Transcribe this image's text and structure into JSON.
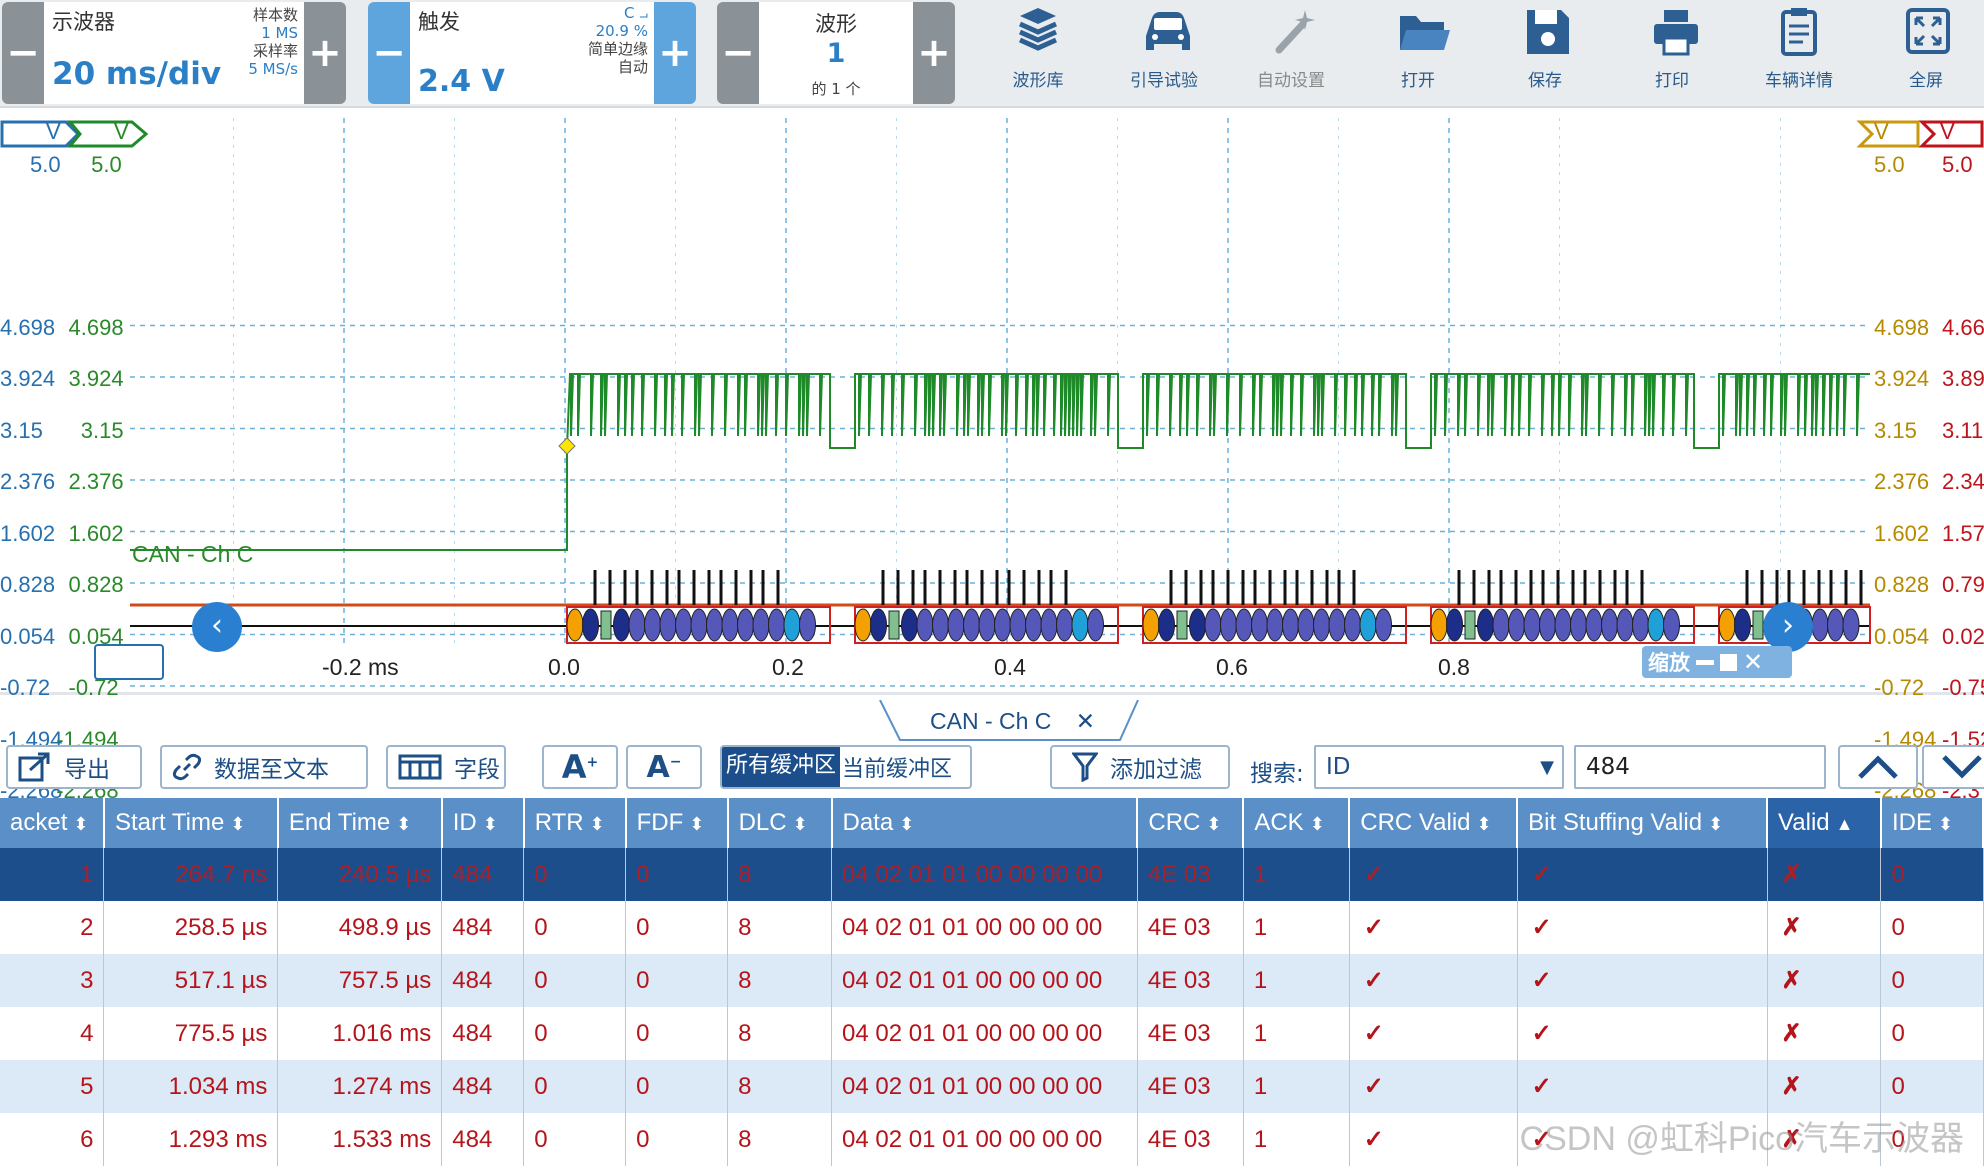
{
  "scope_ctl": {
    "title": "示波器",
    "timebase": "20 ms/div",
    "samples_label": "样本数",
    "samples_value": "1 MS",
    "rate_label": "采样率",
    "rate_value": "5 MS/s"
  },
  "trigger_ctl": {
    "title": "触发",
    "level": "2.4 V",
    "channel": "C",
    "percent": "20.9 %",
    "edge": "简单边缘",
    "mode": "自动"
  },
  "wave_ctl": {
    "title": "波形",
    "count": "1",
    "of": "的 1 个"
  },
  "tools": [
    {
      "label": "波形库",
      "icon": "waveform-library-icon"
    },
    {
      "label": "引导试验",
      "icon": "car-icon"
    },
    {
      "label": "自动设置",
      "icon": "auto-setup-icon"
    },
    {
      "label": "打开",
      "icon": "folder-icon"
    },
    {
      "label": "保存",
      "icon": "save-icon"
    },
    {
      "label": "打印",
      "icon": "printer-icon"
    },
    {
      "label": "车辆详情",
      "icon": "clipboard-icon"
    },
    {
      "label": "全屏",
      "icon": "fullscreen-icon"
    }
  ],
  "scope": {
    "left_axis_blue": {
      "unit": "V",
      "ticks": [
        "5.0",
        "4.698",
        "3.924",
        "3.15",
        "2.376",
        "1.602",
        "0.828",
        "0.054",
        "-0.72",
        "-1.494",
        "-2.268"
      ]
    },
    "left_axis_green": {
      "unit": "V",
      "ticks": [
        "5.0",
        "4.698",
        "3.924",
        "3.15",
        "2.376",
        "1.602",
        "0.828",
        "0.054",
        "-0.72",
        "-1.494",
        "-2.268"
      ]
    },
    "right_axis_orange": {
      "unit": "V",
      "ticks": [
        "5.0",
        "4.698",
        "3.924",
        "3.15",
        "2.376",
        "1.602",
        "0.828",
        "0.054",
        "-0.72",
        "-1.494",
        "-2.268"
      ]
    },
    "right_axis_red": {
      "unit": "V",
      "ticks": [
        "5.0",
        "4.66",
        "3.89",
        "3.11",
        "2.34",
        "1.57",
        "0.79",
        "0.02",
        "-0.75",
        "-1.52",
        "-2.3"
      ]
    },
    "x_ticks": [
      "-0.2 ms",
      "0.0",
      "0.2",
      "0.4",
      "0.6",
      "0.8"
    ],
    "channel_label": "CAN - Ch C",
    "zoom_label": "缩放",
    "colors": {
      "green": "#1f8a2a",
      "red": "#d0202a",
      "orange": "#e8a020",
      "blue": "#2770b0"
    }
  },
  "decoder": {
    "tab_label": "CAN - Ch C",
    "export": "导出",
    "to_text": "数据至文本",
    "fields": "字段",
    "buf_all": "所有缓冲区",
    "buf_current": "当前缓冲区",
    "add_filter": "添加过滤",
    "search_label": "搜索:",
    "search_field": "ID",
    "search_value": "484"
  },
  "table": {
    "columns": [
      "acket",
      "Start Time",
      "End Time",
      "ID",
      "RTR",
      "FDF",
      "DLC",
      "Data",
      "CRC",
      "ACK",
      "CRC Valid",
      "Bit Stuffing Valid",
      "Valid",
      "IDE"
    ],
    "rows": [
      [
        "1",
        "264.7 ns",
        "240.5 µs",
        "484",
        "0",
        "0",
        "8",
        "04 02 01 01 00 00 00 00",
        "4E 03",
        "1",
        "✓",
        "✓",
        "✗",
        "0"
      ],
      [
        "2",
        "258.5 µs",
        "498.9 µs",
        "484",
        "0",
        "0",
        "8",
        "04 02 01 01 00 00 00 00",
        "4E 03",
        "1",
        "✓",
        "✓",
        "✗",
        "0"
      ],
      [
        "3",
        "517.1 µs",
        "757.5 µs",
        "484",
        "0",
        "0",
        "8",
        "04 02 01 01 00 00 00 00",
        "4E 03",
        "1",
        "✓",
        "✓",
        "✗",
        "0"
      ],
      [
        "4",
        "775.5 µs",
        "1.016 ms",
        "484",
        "0",
        "0",
        "8",
        "04 02 01 01 00 00 00 00",
        "4E 03",
        "1",
        "✓",
        "✓",
        "✗",
        "0"
      ],
      [
        "5",
        "1.034 ms",
        "1.274 ms",
        "484",
        "0",
        "0",
        "8",
        "04 02 01 01 00 00 00 00",
        "4E 03",
        "1",
        "✓",
        "✓",
        "✗",
        "0"
      ],
      [
        "6",
        "1.293 ms",
        "1.533 ms",
        "484",
        "0",
        "0",
        "8",
        "04 02 01 01 00 00 00 00",
        "4E 03",
        "1",
        "✓",
        "✓",
        "✗",
        "0"
      ]
    ]
  },
  "watermark": "CSDN @虹科Pico汽车示波器"
}
